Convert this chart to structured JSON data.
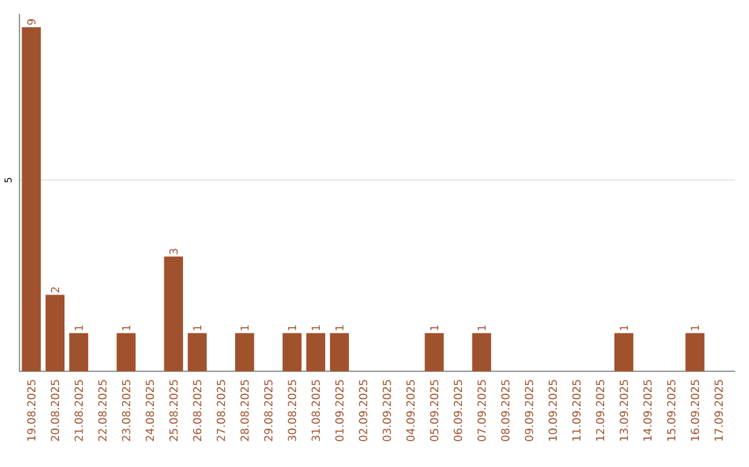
{
  "chart_data": {
    "type": "bar",
    "categories": [
      "19.08.2025",
      "20.08.2025",
      "21.08.2025",
      "22.08.2025",
      "23.08.2025",
      "24.08.2025",
      "25.08.2025",
      "26.08.2025",
      "27.08.2025",
      "28.08.2025",
      "29.08.2025",
      "30.08.2025",
      "31.08.2025",
      "01.09.2025",
      "02.09.2025",
      "03.09.2025",
      "04.09.2025",
      "05.09.2025",
      "06.09.2025",
      "07.09.2025",
      "08.09.2025",
      "09.09.2025",
      "10.09.2025",
      "11.09.2025",
      "12.09.2025",
      "13.09.2025",
      "14.09.2025",
      "15.09.2025",
      "16.09.2025",
      "17.09.2025"
    ],
    "values": [
      9,
      2,
      1,
      0,
      1,
      0,
      3,
      1,
      0,
      1,
      0,
      1,
      1,
      1,
      0,
      0,
      0,
      1,
      0,
      1,
      0,
      0,
      0,
      0,
      0,
      1,
      0,
      0,
      1,
      0
    ],
    "value_labels": [
      "9",
      "2",
      "1",
      null,
      "1",
      null,
      "3",
      "1",
      null,
      "1",
      null,
      "1",
      "1",
      "1",
      null,
      null,
      null,
      "1",
      null,
      "1",
      null,
      null,
      null,
      null,
      null,
      "1",
      null,
      null,
      "1",
      null
    ],
    "color": "#a0522d",
    "ylim": [
      0,
      9.35
    ],
    "yticks": [
      5
    ],
    "grid": "y"
  }
}
